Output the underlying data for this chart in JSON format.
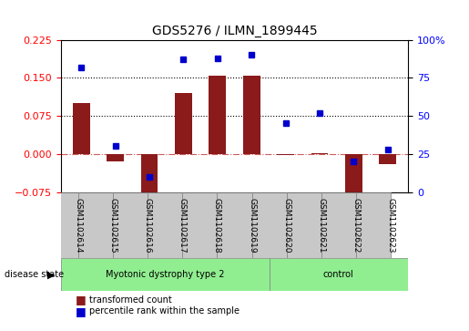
{
  "title": "GDS5276 / ILMN_1899445",
  "samples": [
    "GSM1102614",
    "GSM1102615",
    "GSM1102616",
    "GSM1102617",
    "GSM1102618",
    "GSM1102619",
    "GSM1102620",
    "GSM1102621",
    "GSM1102622",
    "GSM1102623"
  ],
  "red_values": [
    0.1,
    -0.015,
    -0.09,
    0.12,
    0.155,
    0.155,
    -0.002,
    0.001,
    -0.095,
    -0.02
  ],
  "blue_values": [
    82,
    30,
    10,
    87,
    88,
    90,
    45,
    52,
    20,
    28
  ],
  "left_ylim": [
    -0.075,
    0.225
  ],
  "right_ylim": [
    0,
    100
  ],
  "left_yticks": [
    -0.075,
    0,
    0.075,
    0.15,
    0.225
  ],
  "right_yticks": [
    0,
    25,
    50,
    75,
    100
  ],
  "hlines": [
    0.075,
    0.15
  ],
  "bar_color": "#8B1A1A",
  "dot_color": "#0000CD",
  "zero_line_color": "#CD5C5C",
  "group1_label": "Myotonic dystrophy type 2",
  "group2_label": "control",
  "group1_indices": [
    0,
    1,
    2,
    3,
    4,
    5
  ],
  "group2_indices": [
    6,
    7,
    8,
    9
  ],
  "group_color": "#90EE90",
  "tick_label_area_color": "#C0C0C0",
  "disease_state_label": "disease state",
  "legend_red": "transformed count",
  "legend_blue": "percentile rank within the sample"
}
